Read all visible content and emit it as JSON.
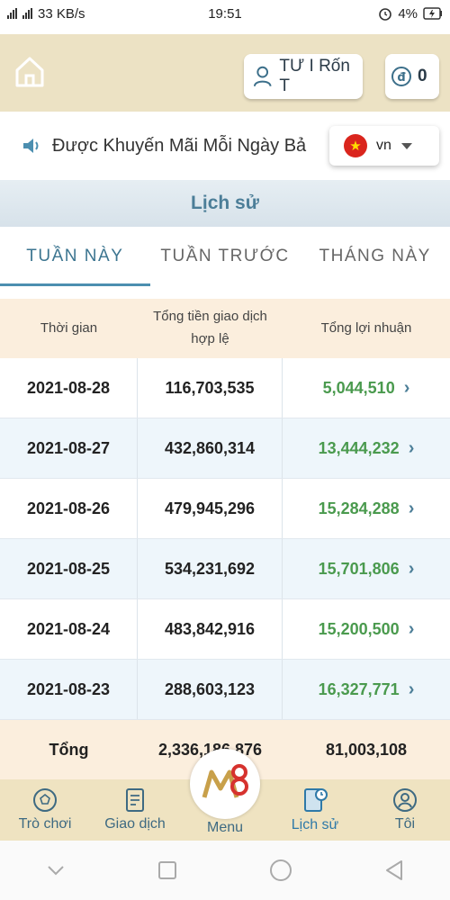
{
  "status_bar": {
    "net_speed": "33 KB/s",
    "time": "19:51",
    "battery": "4%"
  },
  "header": {
    "user_label": "TƯ I Rốn T",
    "coin_value": "0"
  },
  "marquee": {
    "text": "Được Khuyến Mãi Mỗi Ngày Bả"
  },
  "language": {
    "code": "vn"
  },
  "section": {
    "title": "Lịch sử"
  },
  "tabs": [
    {
      "label": "TUẦN NÀY",
      "active": true
    },
    {
      "label": "TUẦN TRƯỚC",
      "active": false
    },
    {
      "label": "THÁNG NÀY",
      "active": false
    }
  ],
  "table": {
    "headers": {
      "time": "Thời gian",
      "volume_line1": "Tổng tiền giao dịch",
      "volume_line2": "hợp lệ",
      "profit": "Tổng lợi nhuận"
    },
    "rows": [
      {
        "date": "2021-08-28",
        "volume": "116,703,535",
        "profit": "5,044,510"
      },
      {
        "date": "2021-08-27",
        "volume": "432,860,314",
        "profit": "13,444,232"
      },
      {
        "date": "2021-08-26",
        "volume": "479,945,296",
        "profit": "15,284,288"
      },
      {
        "date": "2021-08-25",
        "volume": "534,231,692",
        "profit": "15,701,806"
      },
      {
        "date": "2021-08-24",
        "volume": "483,842,916",
        "profit": "15,200,500"
      },
      {
        "date": "2021-08-23",
        "volume": "288,603,123",
        "profit": "16,327,771"
      }
    ],
    "total": {
      "label": "Tổng",
      "volume": "2,336,186,876",
      "profit": "81,003,108"
    }
  },
  "bottom_nav": [
    {
      "label": "Trò chơi",
      "icon": "soccer-ball-icon"
    },
    {
      "label": "Giao dịch",
      "icon": "receipt-icon"
    },
    {
      "label": "Menu",
      "icon": "m8-logo"
    },
    {
      "label": "Lịch sử",
      "icon": "history-book-icon",
      "active": true
    },
    {
      "label": "Tôi",
      "icon": "user-icon"
    }
  ],
  "colors": {
    "header_bg": "#ece2c4",
    "accent": "#4c7e98",
    "profit_green": "#4a9a4e",
    "table_header_bg": "#fbeedd",
    "row_alt_bg": "#eef6fb"
  }
}
